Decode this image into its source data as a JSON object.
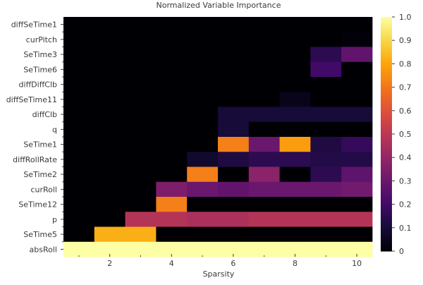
{
  "chart_data": {
    "type": "heatmap",
    "title": "Normalized Variable Importance",
    "xlabel": "Sparsity",
    "ylabel": "",
    "x": [
      1,
      2,
      3,
      4,
      5,
      6,
      7,
      8,
      9,
      10
    ],
    "xticks": [
      2,
      4,
      6,
      8,
      10
    ],
    "xlim": [
      0.5,
      10.5
    ],
    "rows": [
      "diffSeTime1",
      "curPitch",
      "SeTime3",
      "SeTime6",
      "diffDiffClb",
      "diffSeTime11",
      "diffClb",
      "q",
      "SeTime1",
      "diffRollRate",
      "SeTime2",
      "curRoll",
      "SeTime12",
      "p",
      "SeTime5",
      "absRoll"
    ],
    "values": [
      [
        0,
        0,
        0,
        0,
        0,
        0,
        0,
        0,
        0,
        0
      ],
      [
        0,
        0,
        0,
        0,
        0,
        0,
        0,
        0,
        0,
        0.01
      ],
      [
        0,
        0,
        0,
        0,
        0,
        0,
        0,
        0,
        0.15,
        0.28
      ],
      [
        0,
        0,
        0,
        0,
        0,
        0,
        0,
        0,
        0.2,
        0
      ],
      [
        0,
        0,
        0,
        0,
        0,
        0,
        0,
        0,
        0,
        0
      ],
      [
        0,
        0,
        0,
        0,
        0,
        0,
        0,
        0.04,
        0,
        0
      ],
      [
        0,
        0,
        0,
        0,
        0,
        0.1,
        0.1,
        0.1,
        0.1,
        0.1
      ],
      [
        0,
        0,
        0,
        0,
        0,
        0.1,
        0,
        0,
        0,
        0
      ],
      [
        0,
        0,
        0,
        0,
        0,
        0.72,
        0.3,
        0.78,
        0.12,
        0.17
      ],
      [
        0,
        0,
        0,
        0,
        0.08,
        0.12,
        0.15,
        0.15,
        0.13,
        0.13
      ],
      [
        0,
        0,
        0,
        0,
        0.72,
        0,
        0.38,
        0,
        0.15,
        0.27
      ],
      [
        0,
        0,
        0,
        0.35,
        0.3,
        0.28,
        0.3,
        0.3,
        0.3,
        0.32
      ],
      [
        0,
        0,
        0,
        0.72,
        0,
        0,
        0,
        0,
        0,
        0
      ],
      [
        0,
        0,
        0.48,
        0.48,
        0.46,
        0.46,
        0.48,
        0.48,
        0.48,
        0.48
      ],
      [
        0,
        0.82,
        0.82,
        0,
        0,
        0,
        0,
        0,
        0,
        0
      ],
      [
        1,
        1,
        1,
        1,
        1,
        1,
        1,
        1,
        1,
        1
      ]
    ],
    "colorbar": {
      "colormap": "inferno",
      "range": [
        0,
        1
      ],
      "ticks": [
        "0",
        "0.1",
        "0.2",
        "0.3",
        "0.4",
        "0.5",
        "0.6",
        "0.7",
        "0.8",
        "0.9",
        "1.0"
      ]
    },
    "grid": false
  }
}
